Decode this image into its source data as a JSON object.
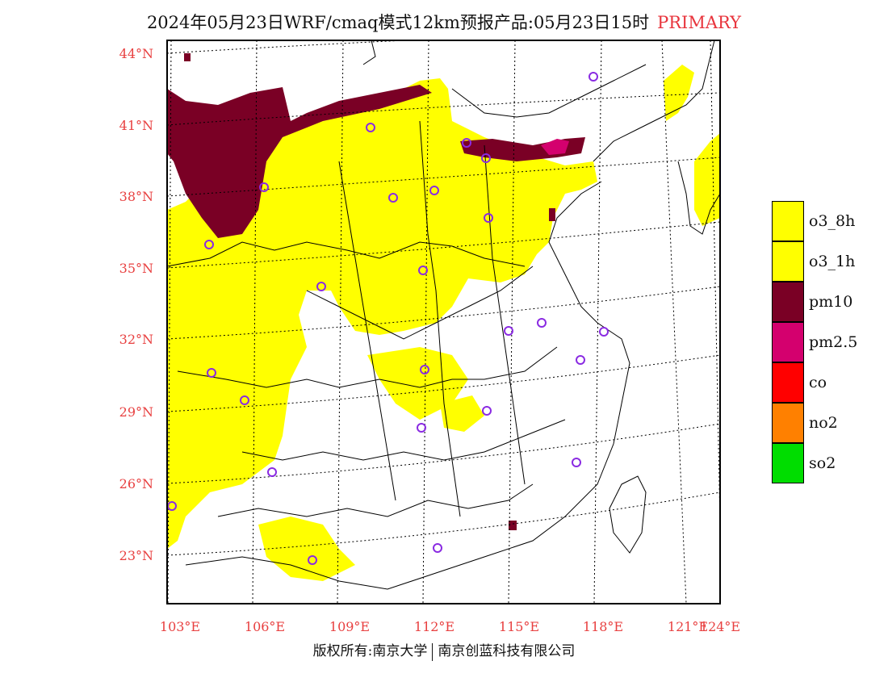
{
  "title": {
    "text": "2024年05月23日WRF/cmaq模式12km预报产品:05月23日15时",
    "tag": "PRIMARY"
  },
  "map": {
    "lat_labels": [
      "44°N",
      "41°N",
      "38°N",
      "35°N",
      "32°N",
      "29°N",
      "26°N",
      "23°N"
    ],
    "lon_labels": [
      "103°E",
      "106°E",
      "109°E",
      "112°E",
      "115°E",
      "118°E",
      "121°E",
      "124°E"
    ],
    "colors": {
      "o3_8h": "#ffff00",
      "pm10": "#7a0025",
      "pm2_5": "#d4006e",
      "city_marker": "#8a2be2",
      "label": "#e84040"
    }
  },
  "legend": {
    "items": [
      {
        "label": "o3_8h",
        "color": "#ffff00"
      },
      {
        "label": "o3_1h",
        "color": "#ffff00"
      },
      {
        "label": "pm10",
        "color": "#7a0025"
      },
      {
        "label": "pm2.5",
        "color": "#d4006e"
      },
      {
        "label": "co",
        "color": "#ff0000"
      },
      {
        "label": "no2",
        "color": "#ff8000"
      },
      {
        "label": "so2",
        "color": "#00dd00"
      }
    ]
  },
  "footer": {
    "left": "版权所有:南京大学",
    "right": "南京创蓝科技有限公司"
  }
}
